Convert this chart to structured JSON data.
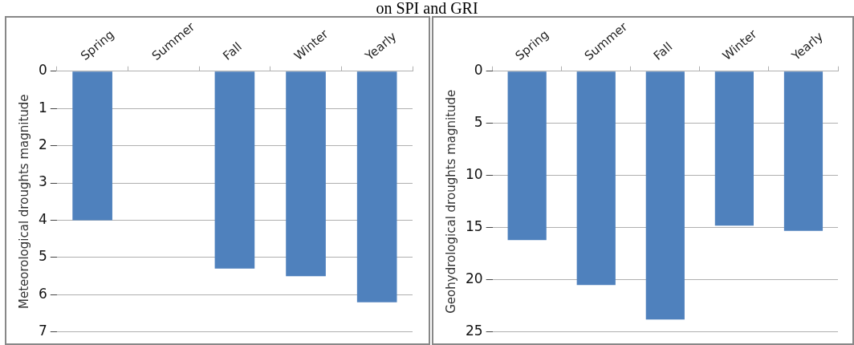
{
  "chart_data": [
    {
      "type": "bar",
      "title": "on SPI and GRI",
      "ylabel": "Meteorological droughts magnitude",
      "categories": [
        "Spring",
        "Summer",
        "Fall",
        "Winter",
        "Yearly"
      ],
      "values": [
        4.0,
        null,
        5.3,
        5.5,
        6.2
      ],
      "color": "#4f81bd",
      "ylim": [
        7,
        0
      ],
      "yticks": [
        0,
        1,
        2,
        3,
        4,
        5,
        6,
        7
      ],
      "grid": "y"
    },
    {
      "type": "bar",
      "ylabel": "Geohydrological droughts magnitude",
      "categories": [
        "Spring",
        "Summer",
        "Fall",
        "Winter",
        "Yearly"
      ],
      "values": [
        16.2,
        20.5,
        23.8,
        14.8,
        15.3
      ],
      "color": "#4f81bd",
      "ylim": [
        25,
        0
      ],
      "yticks": [
        0,
        5,
        10,
        15,
        20,
        25
      ],
      "grid": "y"
    }
  ]
}
